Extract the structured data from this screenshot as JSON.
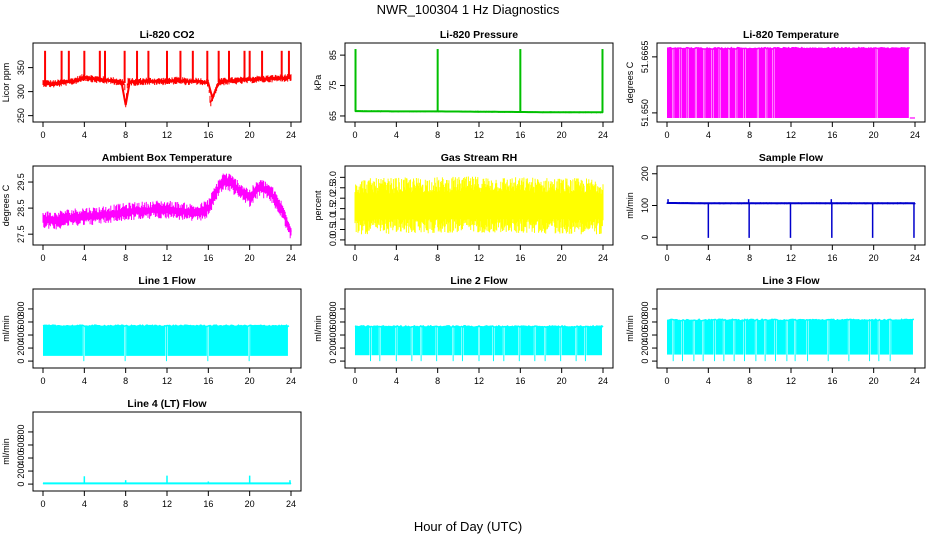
{
  "figure": {
    "title": "NWR_100304  1 Hz Diagnostics",
    "xlabel": "Hour of Day (UTC)"
  },
  "chart_data": [
    {
      "id": "co2",
      "type": "line",
      "title": "Li-820 CO2",
      "ylabel": "Licor ppm",
      "color": "#ff0000",
      "xlim": [
        0,
        24
      ],
      "x_ticks": [
        0,
        4,
        8,
        12,
        16,
        20,
        24
      ],
      "ylim": [
        243,
        395
      ],
      "y_ticks": [
        250,
        300,
        350
      ],
      "y_tick_labels": [
        "250",
        "300",
        "350"
      ],
      "series": [
        {
          "name": "CO2",
          "x": [
            0,
            1,
            2,
            3,
            4,
            5,
            6,
            7,
            7.9,
            8,
            8.2,
            9,
            10,
            11,
            12,
            13,
            14,
            15,
            16,
            16.2,
            17,
            18,
            19,
            20,
            21,
            22,
            23,
            24
          ],
          "values": [
            318,
            316,
            319,
            322,
            330,
            326,
            324,
            322,
            318,
            272,
            321,
            320,
            322,
            321,
            322,
            323,
            321,
            322,
            318,
            275,
            320,
            322,
            323,
            325,
            326,
            327,
            328,
            329
          ]
        }
      ],
      "spikes_x": [
        0.2,
        1.8,
        2.5,
        4.0,
        5.5,
        6.0,
        7.9,
        9.1,
        10.2,
        12.0,
        13.3,
        14.5,
        15.9,
        17.0,
        18.0,
        19.5,
        20.0,
        21.2,
        23.1,
        23.8
      ],
      "spike_top": 385,
      "band": 8
    },
    {
      "id": "pressure",
      "type": "line",
      "title": "Li-820 Pressure",
      "ylabel": "kPa",
      "color": "#00c000",
      "xlim": [
        0,
        24
      ],
      "x_ticks": [
        0,
        4,
        8,
        12,
        16,
        20,
        24
      ],
      "ylim": [
        64,
        88
      ],
      "y_ticks": [
        65,
        75,
        85
      ],
      "y_tick_labels": [
        "65",
        "75",
        "85"
      ],
      "series": [
        {
          "name": "Pressure",
          "x": [
            0,
            4,
            8,
            12,
            16,
            20,
            24
          ],
          "values": [
            66.6,
            66.5,
            66.5,
            66.4,
            66.3,
            66.2,
            66.2
          ]
        }
      ],
      "spikes_x": [
        0.05,
        8.0,
        16.0,
        23.95
      ],
      "spike_top": 87,
      "band": 0.3
    },
    {
      "id": "temp820",
      "type": "band",
      "title": "Li-820 Temperature",
      "ylabel": "degrees C",
      "color": "#ff00ff",
      "xlim": [
        0,
        24
      ],
      "x_ticks": [
        0,
        4,
        8,
        12,
        16,
        20,
        24
      ],
      "ylim": [
        51.6482,
        51.6697
      ],
      "y_ticks": [
        51.65,
        51.6665
      ],
      "y_tick_labels": [
        "51.650",
        "51.6665"
      ],
      "series": [
        {
          "name": "Temperature",
          "x": [
            0,
            23.5
          ],
          "values": [
            51.669,
            51.669
          ]
        }
      ],
      "band_low": 51.6485,
      "floor": 51.6485,
      "gaps_x": [
        0.6,
        1.3,
        2.0,
        2.8,
        3.6,
        4.4,
        5.1,
        6.0,
        6.7,
        7.5,
        8.8,
        9.6,
        10.3,
        20.3
      ],
      "end_x": 23.5,
      "tail": [
        23.5,
        24,
        51.6485
      ]
    },
    {
      "id": "boxtemp",
      "type": "line",
      "title": "Ambient Box Temperature",
      "ylabel": "degrees C",
      "color": "#ff00ff",
      "xlim": [
        0,
        24
      ],
      "x_ticks": [
        0,
        4,
        8,
        12,
        16,
        20,
        24
      ],
      "ylim": [
        27.2,
        30.0
      ],
      "y_ticks": [
        27.5,
        28.5,
        29.5
      ],
      "y_tick_labels": [
        "27.5",
        "28.5",
        "29.5"
      ],
      "series": [
        {
          "name": "Box Temp",
          "x": [
            0,
            1,
            2,
            3,
            4,
            5,
            6,
            7,
            8,
            9,
            10,
            11,
            12,
            13,
            14,
            15,
            16,
            17,
            17.5,
            18,
            19,
            20,
            21,
            22,
            23,
            24
          ],
          "values": [
            28.1,
            28.0,
            28.1,
            28.15,
            28.2,
            28.2,
            28.25,
            28.3,
            28.35,
            28.4,
            28.4,
            28.45,
            28.45,
            28.4,
            28.35,
            28.3,
            28.5,
            29.3,
            29.55,
            29.5,
            29.2,
            28.9,
            29.3,
            29.1,
            28.5,
            27.6
          ]
        }
      ],
      "band": 0.35
    },
    {
      "id": "rh",
      "type": "band",
      "title": "Gas Stream RH",
      "ylabel": "percent",
      "color": "#ffff00",
      "xlim": [
        0,
        24
      ],
      "x_ticks": [
        0,
        4,
        8,
        12,
        16,
        20,
        24
      ],
      "ylim": [
        -0.1,
        3.4
      ],
      "y_ticks": [
        0.0,
        0.5,
        1.0,
        1.5,
        2.0,
        2.5,
        3.0
      ],
      "y_tick_labels": [
        "0.0",
        "0.5",
        "1.0",
        "1.5",
        "2.0",
        "2.5",
        "3.0"
      ],
      "series": [
        {
          "name": "RH",
          "x": [
            0,
            6,
            12,
            18,
            24
          ],
          "values": [
            1.6,
            1.65,
            1.7,
            1.65,
            1.6
          ]
        }
      ],
      "band": 1.35
    },
    {
      "id": "sampleflow",
      "type": "line",
      "title": "Sample Flow",
      "ylabel": "ml/min",
      "color": "#0000cc",
      "xlim": [
        0,
        24
      ],
      "x_ticks": [
        0,
        4,
        8,
        12,
        16,
        20,
        24
      ],
      "ylim": [
        -15,
        215
      ],
      "y_ticks": [
        0,
        100,
        200
      ],
      "y_tick_labels": [
        "0",
        "100",
        "200"
      ],
      "series": [
        {
          "name": "Sample",
          "x": [
            0,
            4,
            8,
            12,
            16,
            20,
            24
          ],
          "values": [
            108,
            107,
            107,
            107,
            107,
            107,
            107
          ]
        }
      ],
      "dips_x": [
        4.0,
        7.95,
        11.95,
        15.95,
        19.9,
        23.9
      ],
      "dip_low": -2,
      "up_spikes_x": [
        0.1,
        7.9,
        15.9
      ],
      "up_top": 120,
      "band": 3
    },
    {
      "id": "line1",
      "type": "band",
      "title": "Line 1 Flow",
      "ylabel": "ml/min",
      "color": "#00ffff",
      "xlim": [
        0,
        24
      ],
      "x_ticks": [
        0,
        4,
        8,
        12,
        16,
        20,
        24
      ],
      "ylim": [
        -60,
        1060
      ],
      "y_ticks": [
        0,
        200,
        400,
        600,
        800
      ],
      "y_tick_labels": [
        "0",
        "200",
        "400",
        "600",
        "800"
      ],
      "series": [
        {
          "name": "Line 1",
          "x": [
            0,
            23.8
          ],
          "values": [
            540,
            540
          ]
        }
      ],
      "band_low": 80,
      "floor": -1,
      "gaps_x": [
        3.95,
        7.95,
        11.95,
        15.95,
        19.95
      ],
      "end_x": 23.8
    },
    {
      "id": "line2",
      "type": "band",
      "title": "Line 2 Flow",
      "ylabel": "ml/min",
      "color": "#00ffff",
      "xlim": [
        0,
        24
      ],
      "x_ticks": [
        0,
        4,
        8,
        12,
        16,
        20,
        24
      ],
      "ylim": [
        -60,
        1060
      ],
      "y_ticks": [
        0,
        200,
        400,
        600,
        800
      ],
      "y_tick_labels": [
        "0",
        "200",
        "400",
        "600",
        "800"
      ],
      "series": [
        {
          "name": "Line 2",
          "x": [
            0,
            24
          ],
          "values": [
            530,
            530
          ]
        }
      ],
      "band_low": 90,
      "floor": -1,
      "gaps_x": [
        1.5,
        2.4,
        4.0,
        5.5,
        6.4,
        7.9,
        9.5,
        10.4,
        12.0,
        13.4,
        14.4,
        15.9,
        17.4,
        18.4,
        19.9,
        21.4,
        22.3
      ],
      "end_x": 24
    },
    {
      "id": "line3",
      "type": "band",
      "title": "Line 3 Flow",
      "ylabel": "ml/min",
      "color": "#00ffff",
      "xlim": [
        0,
        24
      ],
      "x_ticks": [
        0,
        4,
        8,
        12,
        16,
        20,
        24
      ],
      "ylim": [
        -60,
        1060
      ],
      "y_ticks": [
        0,
        200,
        400,
        600,
        800
      ],
      "y_tick_labels": [
        "0",
        "200",
        "400",
        "600",
        "800"
      ],
      "series": [
        {
          "name": "Line 3",
          "x": [
            0,
            23.9
          ],
          "values": [
            630,
            630
          ]
        }
      ],
      "band_low": 100,
      "floor": -1,
      "gaps_x": [
        0.6,
        1.5,
        2.6,
        3.5,
        4.6,
        5.5,
        6.5,
        7.5,
        8.6,
        9.5,
        10.5,
        11.6,
        12.4,
        13.6,
        15.6,
        17.6,
        19.6,
        20.5,
        21.6
      ],
      "end_x": 23.9
    },
    {
      "id": "line4",
      "type": "line",
      "title": "Line 4 (LT) Flow",
      "ylabel": "ml/min",
      "color": "#00ffff",
      "xlim": [
        0,
        24
      ],
      "x_ticks": [
        0,
        4,
        8,
        12,
        16,
        20,
        24
      ],
      "ylim": [
        -60,
        1060
      ],
      "y_ticks": [
        0,
        200,
        400,
        600,
        800
      ],
      "y_tick_labels": [
        "0",
        "200",
        "400",
        "600",
        "800"
      ],
      "series": [
        {
          "name": "Line 4",
          "x": [
            0,
            24
          ],
          "values": [
            10,
            10
          ]
        }
      ],
      "up_spikes_x": [
        4.0,
        8.0,
        12.0,
        16.0,
        20.0,
        23.9
      ],
      "up_heights": [
        120,
        60,
        130,
        40,
        130,
        60
      ],
      "band": 4
    }
  ]
}
